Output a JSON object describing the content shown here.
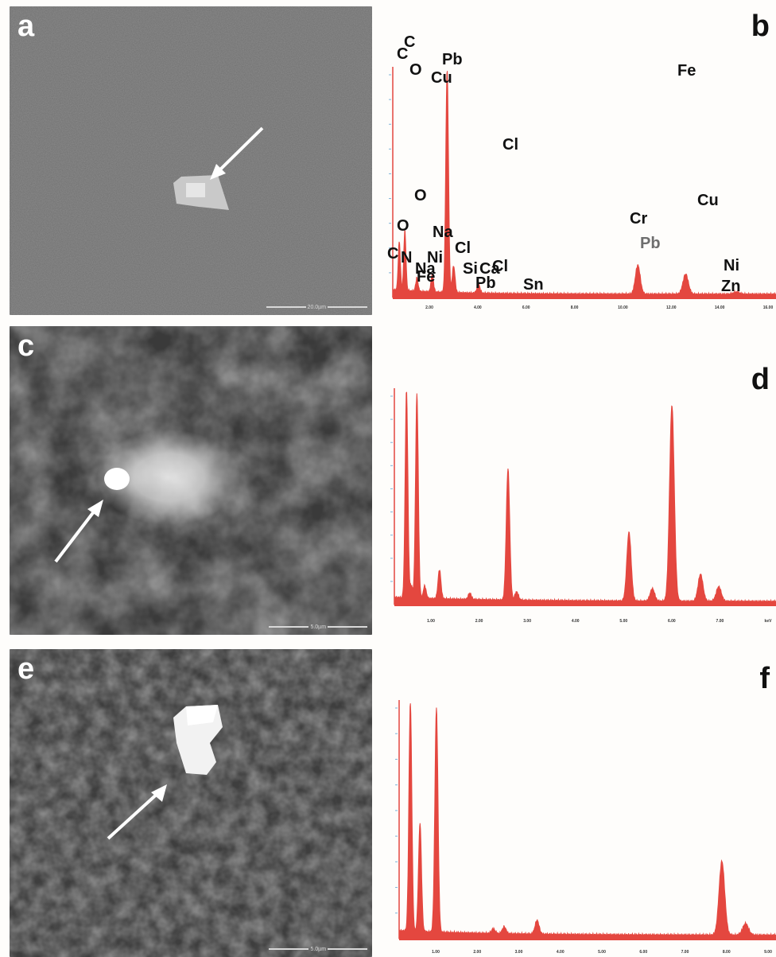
{
  "panels": {
    "a": {
      "label": "a",
      "scalebar": "20.0µm"
    },
    "b": {
      "label": "b"
    },
    "c": {
      "label": "c",
      "scalebar": "5.0µm"
    },
    "d": {
      "label": "d"
    },
    "e": {
      "label": "e",
      "scalebar": "5.0µm"
    },
    "f": {
      "label": "f"
    }
  },
  "colors": {
    "spectrum": "#e4473f",
    "axis": "#e4473f",
    "ytick": "#7fb4d9"
  },
  "chart_data": [
    {
      "id": "b",
      "type": "line",
      "x_unit": "keV",
      "xlim": [
        0,
        16.5
      ],
      "x_ticks": [
        "2.00",
        "4.00",
        "6.00",
        "8.00",
        "10.00",
        "12.00",
        "14.00",
        "16.00"
      ],
      "peaks": [
        {
          "x": 0.28,
          "h": 0.22
        },
        {
          "x": 0.52,
          "h": 0.27
        },
        {
          "x": 1.04,
          "h": 0.06
        },
        {
          "x": 1.7,
          "h": 0.08
        },
        {
          "x": 2.34,
          "h": 1.0
        },
        {
          "x": 2.62,
          "h": 0.12
        },
        {
          "x": 3.69,
          "h": 0.04
        },
        {
          "x": 10.55,
          "h": 0.13
        },
        {
          "x": 12.61,
          "h": 0.09
        },
        {
          "x": 14.8,
          "h": 0.01
        }
      ],
      "labels": [
        {
          "text": "Pb",
          "x": 2.34
        },
        {
          "text": "O",
          "x": 0.52
        },
        {
          "text": "C",
          "x": 0.28
        },
        {
          "text": "Na",
          "x": 1.04
        },
        {
          "text": "Cl",
          "x": 2.62
        },
        {
          "text": "Ca",
          "x": 3.69
        },
        {
          "text": "Pb",
          "x": 10.55,
          "style": "grey"
        }
      ]
    },
    {
      "id": "d",
      "type": "line",
      "x_unit": "keV",
      "xlim": [
        0,
        8.8
      ],
      "x_ticks": [
        "1.00",
        "2.00",
        "3.00",
        "4.00",
        "5.00",
        "6.00",
        "7.00",
        "keV"
      ],
      "peaks": [
        {
          "x": 0.28,
          "h": 1.0
        },
        {
          "x": 0.39,
          "h": 0.06
        },
        {
          "x": 0.52,
          "h": 0.98
        },
        {
          "x": 0.7,
          "h": 0.06
        },
        {
          "x": 1.04,
          "h": 0.14
        },
        {
          "x": 1.74,
          "h": 0.03
        },
        {
          "x": 2.62,
          "h": 0.63
        },
        {
          "x": 2.82,
          "h": 0.04
        },
        {
          "x": 5.41,
          "h": 0.33
        },
        {
          "x": 5.95,
          "h": 0.06
        },
        {
          "x": 6.4,
          "h": 0.94
        },
        {
          "x": 7.06,
          "h": 0.13
        },
        {
          "x": 7.48,
          "h": 0.07
        }
      ],
      "labels": [
        {
          "text": "C",
          "x": 0.28
        },
        {
          "text": "O",
          "x": 0.52
        },
        {
          "text": "Fe",
          "x": 6.4
        },
        {
          "text": "Cl",
          "x": 2.62
        },
        {
          "text": "Cr",
          "x": 5.41
        },
        {
          "text": "Na",
          "x": 1.04
        },
        {
          "text": "N",
          "x": 0.39
        },
        {
          "text": "Ni",
          "x": 0.85
        },
        {
          "text": "Fe",
          "x": 0.7
        },
        {
          "text": "Si",
          "x": 1.74
        },
        {
          "text": "Ni",
          "x": 7.48
        }
      ]
    },
    {
      "id": "f",
      "type": "line",
      "x_unit": "keV",
      "xlim": [
        0,
        9.4
      ],
      "x_ticks": [
        "1.00",
        "2.00",
        "3.00",
        "4.00",
        "5.00",
        "6.00",
        "7.00",
        "8.00",
        "9.00"
      ],
      "peaks": [
        {
          "x": 0.28,
          "h": 1.0
        },
        {
          "x": 0.52,
          "h": 0.47
        },
        {
          "x": 0.93,
          "h": 0.97
        },
        {
          "x": 2.35,
          "h": 0.02
        },
        {
          "x": 2.62,
          "h": 0.03
        },
        {
          "x": 3.44,
          "h": 0.06
        },
        {
          "x": 8.05,
          "h": 0.32
        },
        {
          "x": 8.64,
          "h": 0.05
        }
      ],
      "labels": [
        {
          "text": "C",
          "x": 0.28
        },
        {
          "text": "Cu",
          "x": 0.93
        },
        {
          "text": "O",
          "x": 0.52
        },
        {
          "text": "Cu",
          "x": 8.05
        },
        {
          "text": "Pb",
          "x": 2.35
        },
        {
          "text": "Cl",
          "x": 2.62
        },
        {
          "text": "Sn",
          "x": 3.44
        },
        {
          "text": "Zn",
          "x": 8.64
        }
      ]
    }
  ]
}
